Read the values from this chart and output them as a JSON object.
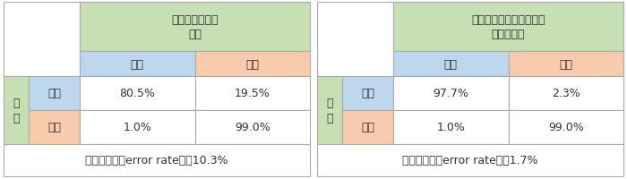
{
  "fig_width": 7.0,
  "fig_height": 2.01,
  "dpi": 100,
  "bg_color": "#ffffff",
  "border_color": "#aaaaaa",
  "color_green_header": "#c6e0b4",
  "color_blue_cell": "#bdd7ee",
  "color_orange_cell": "#f8cbad",
  "color_green_row": "#c6e0b4",
  "table1": {
    "header": "判別分析による\n結果",
    "col_headers": [
      "天然",
      "合成"
    ],
    "row_label_outer": "真\n値",
    "row_labels": [
      "天然",
      "合成"
    ],
    "data": [
      [
        "80.5%",
        "19.5%"
      ],
      [
        "1.0%",
        "99.0%"
      ]
    ],
    "footer": "誤判別率　（error rate）＝10.3%"
  },
  "table2": {
    "header": "ロジスティック回帰分析\nによる結果",
    "col_headers": [
      "天然",
      "合成"
    ],
    "row_label_outer": "真\n値",
    "row_labels": [
      "天然",
      "合成"
    ],
    "data": [
      [
        "97.7%",
        "2.3%"
      ],
      [
        "1.0%",
        "99.0%"
      ]
    ],
    "footer": "誤判別率　（error rate）＝1.7%"
  },
  "font_size_header": 9,
  "font_size_cell": 9,
  "font_size_footer": 9
}
